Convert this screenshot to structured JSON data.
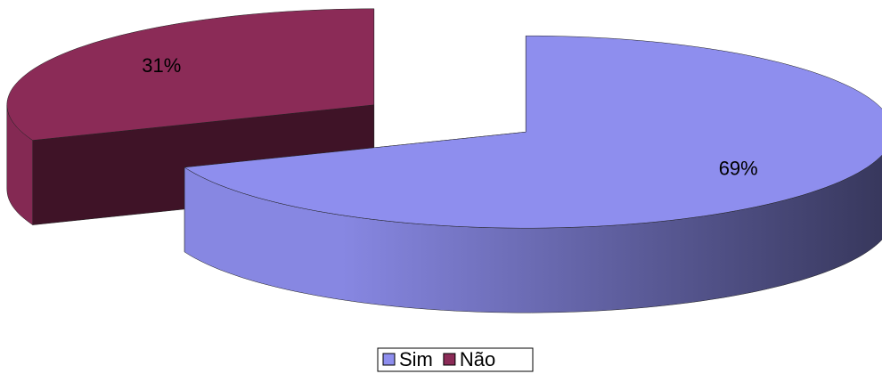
{
  "chart_data": {
    "type": "pie",
    "categories": [
      "Sim",
      "Não"
    ],
    "values": [
      69,
      31
    ],
    "value_labels": [
      "69%",
      "31%"
    ],
    "colors": [
      "#8e8eee",
      "#8b2b57"
    ],
    "legend": "bottom"
  }
}
